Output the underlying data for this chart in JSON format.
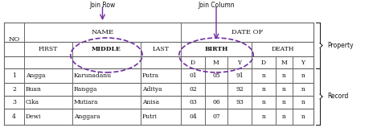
{
  "annotation_join_row": "Join Row",
  "annotation_join_col": "Join Column",
  "annotation_property": "Property",
  "annotation_record": "Record",
  "data_rows": [
    [
      "1",
      "Angga",
      "Karunadanu",
      "Putra",
      "01",
      "05",
      "91",
      "n",
      "n",
      "n"
    ],
    [
      "2",
      "Buan",
      "Rangga",
      "Aditya",
      "02",
      "",
      "92",
      "n",
      "n",
      "n"
    ],
    [
      "3",
      "Cika",
      "Mutiara",
      "Anisa",
      "03",
      "06",
      "93",
      "n",
      "n",
      "n"
    ],
    [
      "4",
      "Dewi",
      "Anggara",
      "Putri",
      "04",
      "07",
      "",
      "n",
      "n",
      "n"
    ]
  ],
  "background_color": "#ffffff",
  "table_line_color": "#666666",
  "text_color": "#111111",
  "ellipse_color": "#7030a0",
  "arrow_color": "#7030a0",
  "fig_width": 4.74,
  "fig_height": 1.64,
  "fig_dpi": 100
}
